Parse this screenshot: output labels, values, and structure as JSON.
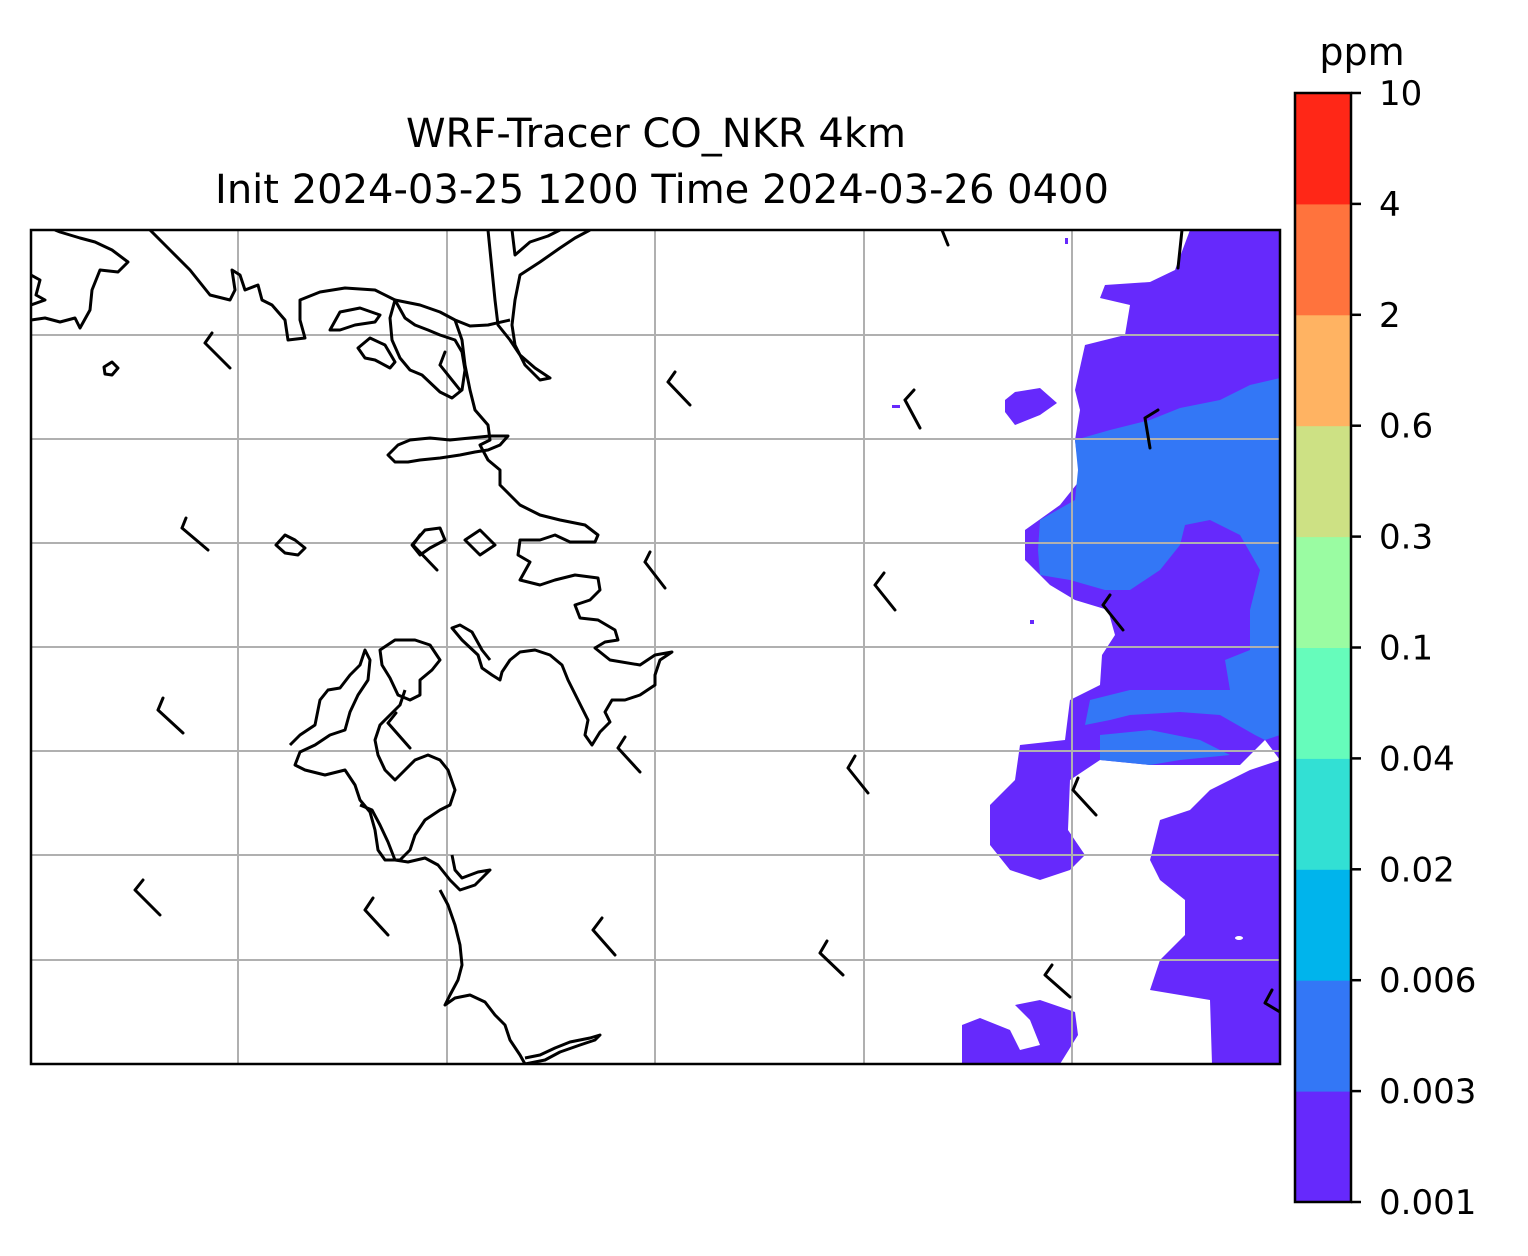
{
  "title_line1": "WRF-Tracer CO_NKR 4km",
  "title_line2": "Init 2024-03-25 1200 Time 2024-03-26 0400",
  "colorbar": {
    "unit": "ppm",
    "levels": [
      "0.001",
      "0.003",
      "0.006",
      "0.02",
      "0.04",
      "0.1",
      "0.3",
      "0.6",
      "2",
      "4",
      "10"
    ],
    "colors": [
      "#6629fc",
      "#3377f6",
      "#00b4ec",
      "#32e0d4",
      "#66fcbb",
      "#9afca2",
      "#cde184",
      "#ffb362",
      "#ff733d",
      "#ff2717"
    ]
  },
  "map": {
    "coastline_color": "#000000",
    "gridline_color": "#b0b0b0",
    "wind_barb_color": "#000000"
  }
}
